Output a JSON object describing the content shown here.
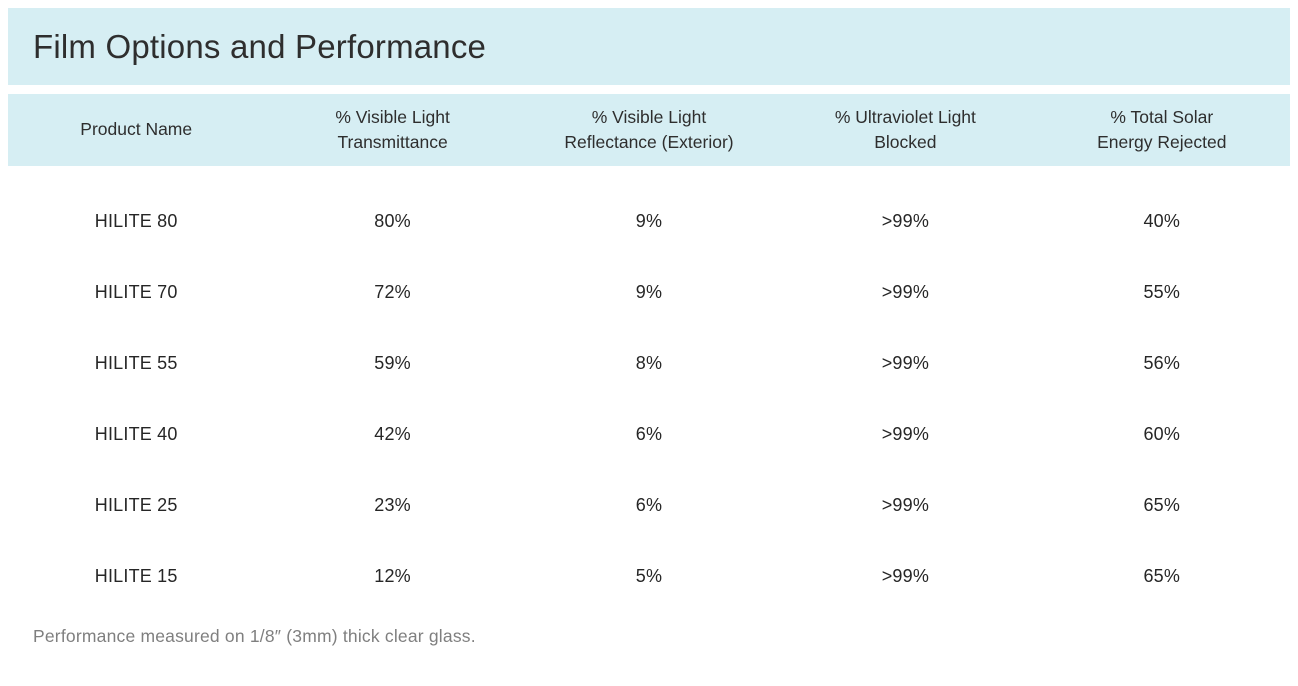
{
  "title": "Film Options and Performance",
  "colors": {
    "banner_background": "#d6eef3",
    "title_text": "#2e2e2e",
    "body_text": "#262626",
    "footnote_text": "#7f7f7f"
  },
  "table": {
    "columns": [
      "Product Name",
      "% Visible Light\nTransmittance",
      "% Visible Light\nReflectance (Exterior)",
      "% Ultraviolet Light\nBlocked",
      "% Total Solar\nEnergy Rejected"
    ],
    "rows": [
      {
        "cells": [
          "HILITE 80",
          "80%",
          "9%",
          ">99%",
          "40%"
        ]
      },
      {
        "cells": [
          "HILITE 70",
          "72%",
          "9%",
          ">99%",
          "55%"
        ]
      },
      {
        "cells": [
          "HILITE 55",
          "59%",
          "8%",
          ">99%",
          "56%"
        ]
      },
      {
        "cells": [
          "HILITE 40",
          "42%",
          "6%",
          ">99%",
          "60%"
        ]
      },
      {
        "cells": [
          "HILITE 25",
          "23%",
          "6%",
          ">99%",
          "65%"
        ]
      },
      {
        "cells": [
          "HILITE 15",
          "12%",
          "5%",
          ">99%",
          "65%"
        ]
      }
    ]
  },
  "footnote": "Performance measured on 1/8″ (3mm) thick clear glass."
}
